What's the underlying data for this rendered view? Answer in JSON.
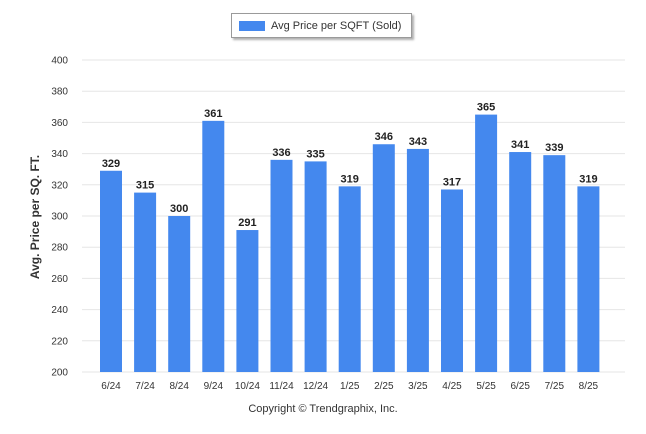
{
  "legend": {
    "label": "Avg Price per SQFT (Sold)"
  },
  "copyright": "Copyright © Trendgraphix, Inc.",
  "colors": {
    "bar": "#4488ee",
    "grid": "#e6e6e6",
    "axis_text": "#333333"
  },
  "chart_data": {
    "type": "bar",
    "categories": [
      "6/24",
      "7/24",
      "8/24",
      "9/24",
      "10/24",
      "11/24",
      "12/24",
      "1/25",
      "2/25",
      "3/25",
      "4/25",
      "5/25",
      "6/25",
      "7/25",
      "8/25"
    ],
    "series": [
      {
        "name": "Avg Price per SQFT (Sold)",
        "values": [
          329,
          315,
          300,
          361,
          291,
          336,
          335,
          319,
          346,
          343,
          317,
          365,
          341,
          339,
          319
        ]
      }
    ],
    "ylabel": "Avg. Price per SQ. FT.",
    "xlabel": "",
    "ylim": [
      200,
      400
    ],
    "yticks": [
      200,
      220,
      240,
      260,
      280,
      300,
      320,
      340,
      360,
      380,
      400
    ],
    "grid": true,
    "legend_position": "top-center"
  }
}
